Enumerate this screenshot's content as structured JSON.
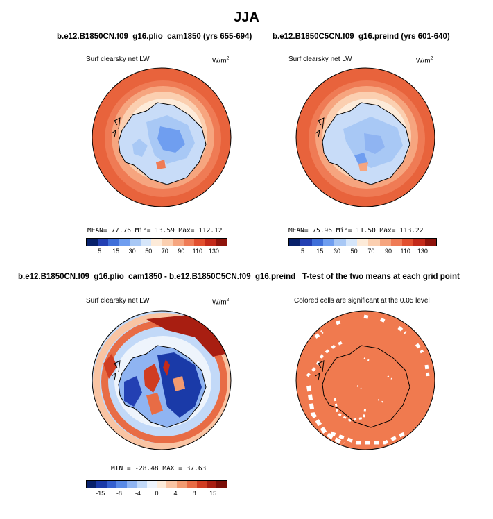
{
  "title": "JJA",
  "panels": {
    "top_left": {
      "case_title": "b.e12.B1850CN.f09_g16.plio_cam1850 (yrs 655-694)",
      "variable": "Surf clearsky net LW",
      "units": "W/m",
      "units_exp": "2",
      "stats": "MEAN=  77.76  Min=  13.59  Max= 112.12"
    },
    "top_right": {
      "case_title": "b.e12.B1850C5CN.f09_g16.preind (yrs 601-640)",
      "variable": "Surf clearsky net LW",
      "units": "W/m",
      "units_exp": "2",
      "stats": "MEAN=  75.96  Min=  11.50  Max= 113.22"
    },
    "bottom_left": {
      "case_title": "b.e12.B1850CN.f09_g16.plio_cam1850 - b.e12.B1850C5CN.f09_g16.preind",
      "variable": "Surf clearsky net LW",
      "units": "W/m",
      "units_exp": "2",
      "stats": "MIN = -28.48  MAX =  37.63"
    },
    "bottom_right": {
      "case_title": "T-test of the two means at each grid point",
      "variable": "Colored cells are significant at the 0.05 level"
    }
  },
  "colorbars": {
    "absolute": {
      "ticks": [
        "5",
        "15",
        "30",
        "50",
        "70",
        "90",
        "110",
        "130"
      ],
      "colors": [
        "#08216b",
        "#2340b3",
        "#3f6fd9",
        "#6f9ef0",
        "#a8c8f5",
        "#d6e6fa",
        "#fdebd9",
        "#fbcfb0",
        "#f6a57f",
        "#ef7b55",
        "#e2502f",
        "#c42a1a",
        "#8f140c"
      ]
    },
    "difference": {
      "ticks": [
        "-15",
        "-8",
        "-4",
        "0",
        "4",
        "8",
        "15"
      ],
      "colors": [
        "#08216b",
        "#1a3aa8",
        "#3560cf",
        "#5a8ae6",
        "#8fb4f2",
        "#c2d9f8",
        "#eef4fc",
        "#fdebd9",
        "#f9c4a3",
        "#f29a70",
        "#e86c45",
        "#d03d22",
        "#a81e11",
        "#7a0d07"
      ]
    }
  },
  "colors": {
    "significant": "#f07a4f",
    "continent_outline": "#000000"
  }
}
